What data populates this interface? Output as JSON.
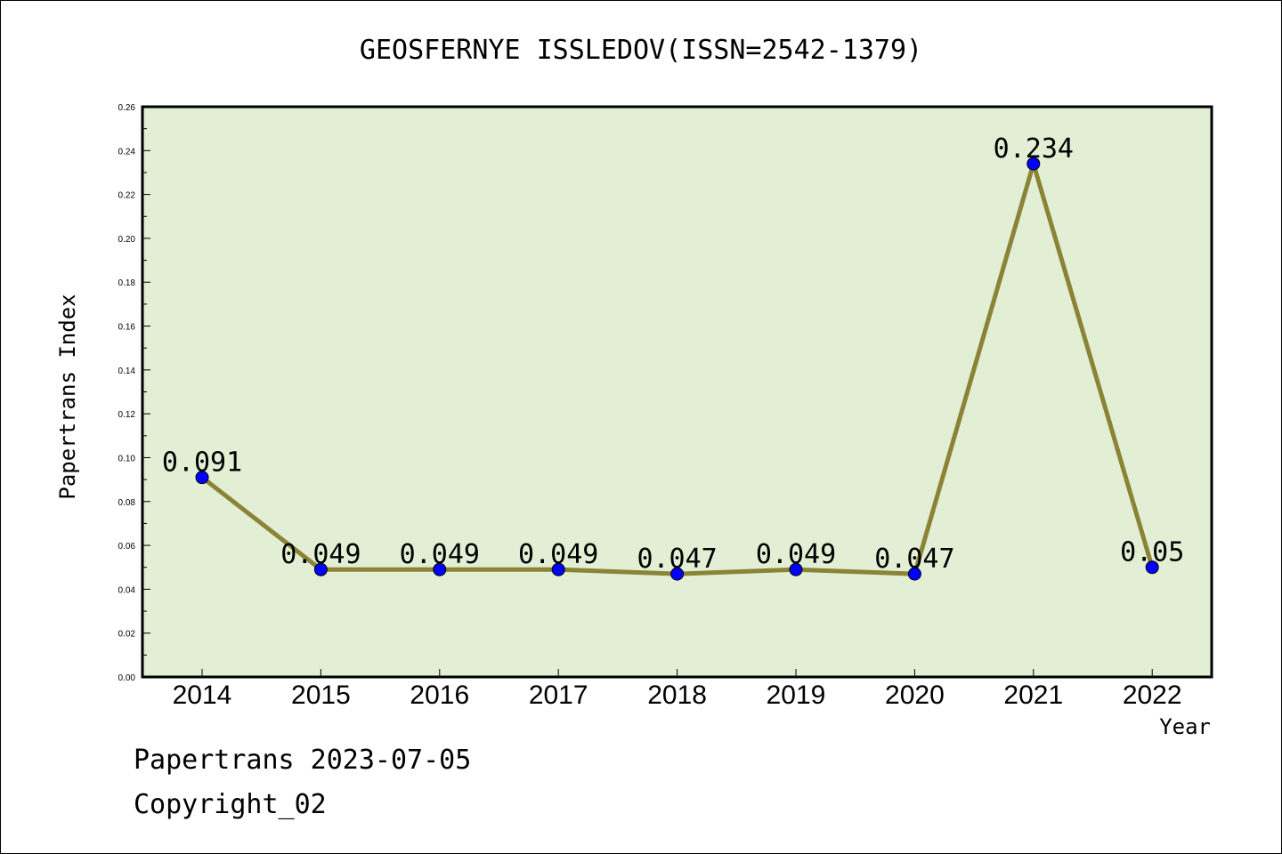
{
  "chart_data": {
    "type": "line",
    "title": "GEOSFERNYE ISSLEDOV(ISSN=2542-1379)",
    "xlabel": "Year",
    "ylabel": "Papertrans Index",
    "categories": [
      "2014",
      "2015",
      "2016",
      "2017",
      "2018",
      "2019",
      "2020",
      "2021",
      "2022"
    ],
    "series": [
      {
        "values": [
          0.091,
          0.049,
          0.049,
          0.049,
          0.047,
          0.049,
          0.047,
          0.234,
          0.05
        ]
      }
    ],
    "data_labels": [
      "0.091",
      "0.049",
      "0.049",
      "0.049",
      "0.047",
      "0.049",
      "0.047",
      "0.234",
      "0.05"
    ],
    "ylim": [
      0,
      0.26
    ],
    "yticks": [
      "0.00",
      "0.02",
      "0.04",
      "0.06",
      "0.08",
      "0.10",
      "0.12",
      "0.14",
      "0.16",
      "0.18",
      "0.20",
      "0.22",
      "0.24",
      "0.26"
    ],
    "grid": false,
    "colors": {
      "plot_bg": "#e2efd5",
      "line": "#8b8336",
      "marker": "#0000ff"
    }
  },
  "footer": {
    "line1": "Papertrans 2023-07-05",
    "line2": "Copyright_02"
  }
}
